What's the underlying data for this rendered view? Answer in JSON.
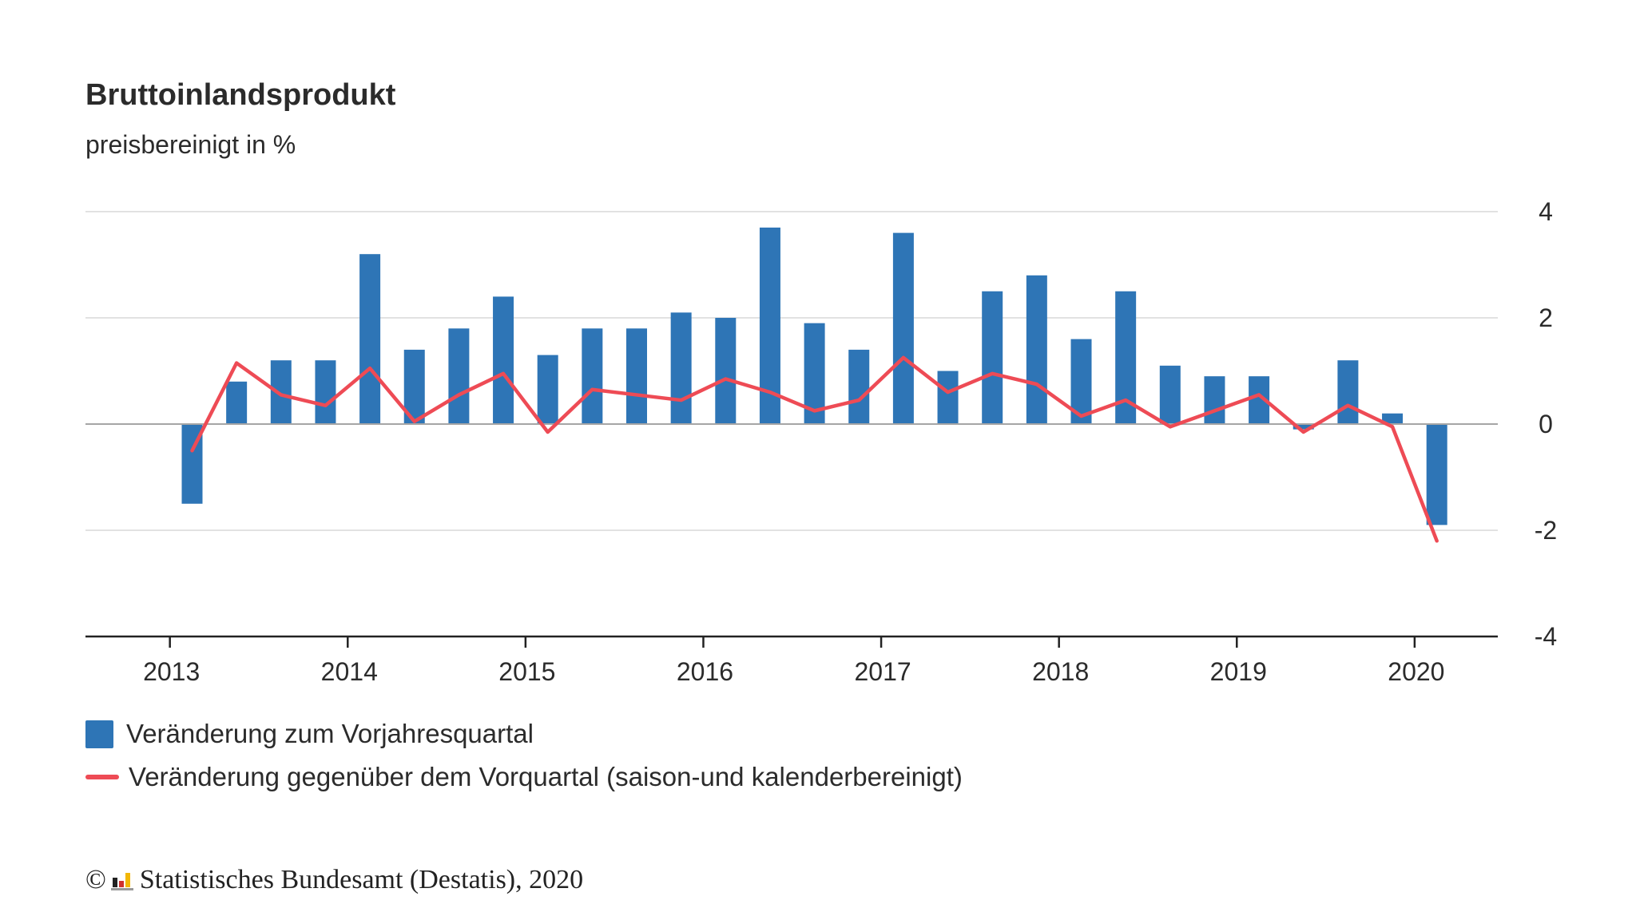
{
  "title": "Bruttoinlandsprodukt",
  "subtitle": "preisbereinigt in %",
  "legend": {
    "bars": "Veränderung zum Vorjahresquartal",
    "line": "Veränderung gegenüber dem Vorquartal (saison-und kalenderbereinigt)"
  },
  "footer": {
    "copyright": "©",
    "text": "Statistisches Bundesamt (Destatis), 2020"
  },
  "colors": {
    "bars": "#2e75b6",
    "line": "#ee4b55",
    "grid": "#d9d9d9",
    "axis": "#222222",
    "zero": "#a6a6a6"
  },
  "chart_data": {
    "type": "bar",
    "x_ticks": [
      "2013",
      "2014",
      "2015",
      "2016",
      "2017",
      "2018",
      "2019",
      "2020"
    ],
    "y_ticks": [
      4,
      2,
      0,
      -2,
      -4
    ],
    "ylim": [
      -4,
      4
    ],
    "grid": true,
    "legend_position": "bottom-left",
    "categories": [
      "2013 Q1",
      "2013 Q2",
      "2013 Q3",
      "2013 Q4",
      "2014 Q1",
      "2014 Q2",
      "2014 Q3",
      "2014 Q4",
      "2015 Q1",
      "2015 Q2",
      "2015 Q3",
      "2015 Q4",
      "2016 Q1",
      "2016 Q2",
      "2016 Q3",
      "2016 Q4",
      "2017 Q1",
      "2017 Q2",
      "2017 Q3",
      "2017 Q4",
      "2018 Q1",
      "2018 Q2",
      "2018 Q3",
      "2018 Q4",
      "2019 Q1",
      "2019 Q2",
      "2019 Q3",
      "2019 Q4",
      "2020 Q1"
    ],
    "series": [
      {
        "name": "Veränderung zum Vorjahresquartal",
        "type": "bar",
        "values": [
          -1.5,
          0.8,
          1.2,
          1.2,
          3.2,
          1.4,
          1.8,
          2.4,
          1.3,
          1.8,
          1.8,
          2.1,
          2.0,
          3.7,
          1.9,
          1.4,
          3.6,
          1.0,
          2.5,
          2.8,
          1.6,
          2.5,
          1.1,
          0.9,
          0.9,
          -0.1,
          1.2,
          0.2,
          -1.9
        ]
      },
      {
        "name": "Veränderung gegenüber dem Vorquartal (saison-und kalenderbereinigt)",
        "type": "line",
        "values": [
          -0.5,
          1.15,
          0.55,
          0.35,
          1.05,
          0.05,
          0.55,
          0.95,
          -0.15,
          0.65,
          0.55,
          0.45,
          0.85,
          0.6,
          0.25,
          0.45,
          1.25,
          0.6,
          0.95,
          0.75,
          0.15,
          0.45,
          -0.05,
          0.25,
          0.55,
          -0.15,
          0.35,
          -0.05,
          -2.2
        ]
      }
    ]
  }
}
